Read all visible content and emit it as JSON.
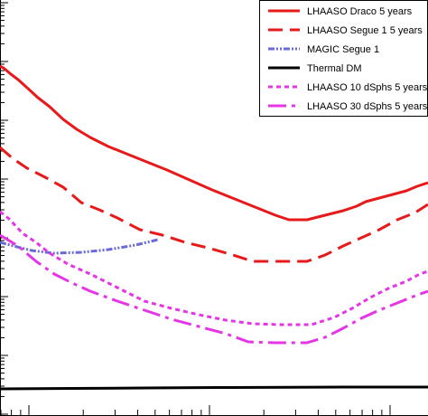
{
  "chart_data": {
    "type": "line",
    "title": "",
    "xlabel": "",
    "ylabel": "",
    "x_scale": "log",
    "y_scale": "log",
    "grid": false,
    "legend_position": "top-right",
    "series": [
      {
        "name": "LHAASO Draco 5 years",
        "color": "#e8191a",
        "style": "solid",
        "points": [
          [
            0,
            73
          ],
          [
            5,
            76
          ],
          [
            12,
            82
          ],
          [
            20,
            88
          ],
          [
            30,
            97
          ],
          [
            42,
            108
          ],
          [
            55,
            118
          ],
          [
            70,
            132
          ],
          [
            85,
            143
          ],
          [
            100,
            152
          ],
          [
            120,
            162
          ],
          [
            140,
            170
          ],
          [
            160,
            178
          ],
          [
            185,
            188
          ],
          [
            210,
            199
          ],
          [
            235,
            210
          ],
          [
            260,
            220
          ],
          [
            285,
            230
          ],
          [
            305,
            238
          ],
          [
            320,
            243
          ],
          [
            340,
            243
          ],
          [
            360,
            238
          ],
          [
            380,
            233
          ],
          [
            395,
            228
          ],
          [
            405,
            223
          ],
          [
            420,
            219
          ],
          [
            435,
            215
          ],
          [
            450,
            211
          ],
          [
            462,
            206
          ],
          [
            474,
            202
          ]
        ]
      },
      {
        "name": "LHAASO Segue 1 5 years",
        "color": "#e8191a",
        "style": "dashed",
        "points": [
          [
            0,
            163
          ],
          [
            15,
            176
          ],
          [
            30,
            186
          ],
          [
            50,
            196
          ],
          [
            70,
            207
          ],
          [
            90,
            224
          ],
          [
            110,
            232
          ],
          [
            130,
            241
          ],
          [
            155,
            254
          ],
          [
            180,
            260
          ],
          [
            205,
            268
          ],
          [
            230,
            274
          ],
          [
            255,
            281
          ],
          [
            280,
            289
          ],
          [
            310,
            289
          ],
          [
            340,
            289
          ],
          [
            360,
            282
          ],
          [
            380,
            272
          ],
          [
            400,
            263
          ],
          [
            420,
            254
          ],
          [
            440,
            243
          ],
          [
            460,
            235
          ],
          [
            474,
            226
          ]
        ]
      },
      {
        "name": "MAGIC Segue 1",
        "color": "#6a6ad8",
        "style": "dashdotdot",
        "points": [
          [
            0,
            268
          ],
          [
            15,
            272
          ],
          [
            35,
            277
          ],
          [
            60,
            280
          ],
          [
            90,
            279
          ],
          [
            120,
            276
          ],
          [
            150,
            271
          ],
          [
            175,
            265
          ]
        ]
      },
      {
        "name": "Thermal DM",
        "color": "#000000",
        "style": "solid",
        "points": [
          [
            0,
            430
          ],
          [
            80,
            429.5
          ],
          [
            160,
            429
          ],
          [
            240,
            428.5
          ],
          [
            320,
            428.2
          ],
          [
            400,
            428
          ],
          [
            474,
            428
          ]
        ]
      },
      {
        "name": "LHAASO 10 dSphs 5 years",
        "color": "#e535e5",
        "style": "dotted",
        "points": [
          [
            0,
            234
          ],
          [
            10,
            242
          ],
          [
            25,
            258
          ],
          [
            40,
            268
          ],
          [
            55,
            280
          ],
          [
            75,
            292
          ],
          [
            100,
            303
          ],
          [
            130,
            318
          ],
          [
            160,
            333
          ],
          [
            190,
            341
          ],
          [
            220,
            348
          ],
          [
            250,
            354
          ],
          [
            280,
            358
          ],
          [
            310,
            359
          ],
          [
            345,
            359
          ],
          [
            370,
            351
          ],
          [
            390,
            341
          ],
          [
            410,
            329
          ],
          [
            430,
            319
          ],
          [
            450,
            311
          ],
          [
            465,
            303
          ],
          [
            474,
            300
          ]
        ]
      },
      {
        "name": "LHAASO 30 dSphs 5 years",
        "color": "#e535e5",
        "style": "longdash",
        "points": [
          [
            0,
            260
          ],
          [
            20,
            272
          ],
          [
            40,
            289
          ],
          [
            60,
            303
          ],
          [
            80,
            313
          ],
          [
            100,
            322
          ],
          [
            130,
            333
          ],
          [
            160,
            343
          ],
          [
            190,
            353
          ],
          [
            220,
            361
          ],
          [
            250,
            369
          ],
          [
            275,
            378
          ],
          [
            305,
            379
          ],
          [
            340,
            379
          ],
          [
            360,
            373
          ],
          [
            380,
            363
          ],
          [
            400,
            352
          ],
          [
            420,
            343
          ],
          [
            440,
            335
          ],
          [
            460,
            327
          ],
          [
            474,
            322
          ]
        ]
      }
    ]
  }
}
